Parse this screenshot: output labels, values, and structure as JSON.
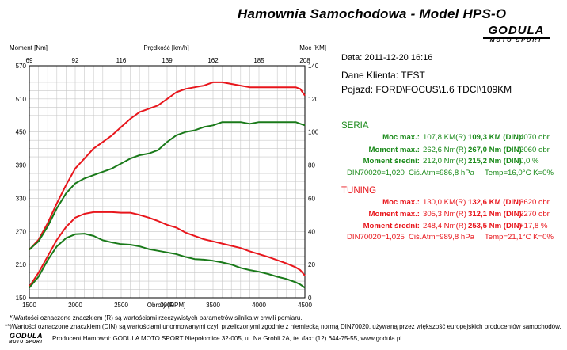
{
  "header": {
    "title": "Hamownia Samochodowa   -   Model HPS-O",
    "logo_main": "GODULA",
    "logo_sub": "MOTO SPORT"
  },
  "info": {
    "date": "Data: 2011-12-20  16:16",
    "klient": "Dane Klienta: TEST",
    "pojazd": "Pojazd: FORD\\FOCUS\\1.6 TDCI\\109KM"
  },
  "seria": {
    "title": "SERIA",
    "rows": [
      {
        "label": "Moc max.:",
        "v1": "107,8 KM(R)",
        "v2": "109,3 KM (DIN)",
        "v3": "4070 obr"
      },
      {
        "label": "Moment max.:",
        "v1": "262,6 Nm(R)",
        "v2": "267,0 Nm (DIN)",
        "v3": "2060 obr"
      },
      {
        "label": "Moment średni:",
        "v1": "212,0 Nm(R)",
        "v2": "215,2 Nm (DIN)",
        "v3": "0,0 %"
      }
    ],
    "din": "DIN70020=1,020",
    "atm": "Ciś.Atm=986,8 hPa",
    "temp": "Temp=16,0°C  K=0%"
  },
  "tuning": {
    "title": "TUNING",
    "rows": [
      {
        "label": "Moc max.:",
        "v1": "130,0 KM(R)",
        "v2": "132,6 KM (DIN)",
        "v3": "3620 obr"
      },
      {
        "label": "Moment max.:",
        "v1": "305,3 Nm(R)",
        "v2": "312,1 Nm (DIN)",
        "v3": "2270 obr"
      },
      {
        "label": "Moment średni:",
        "v1": "248,4 Nm(R)",
        "v2": "253,5 Nm (DIN)",
        "v3": "+17,8 %"
      }
    ],
    "din": "DIN70020=1,025",
    "atm": "Ciś.Atm=989,8 hPa",
    "temp": "Temp=21,1°C  K=0%"
  },
  "footer": {
    "note1": "*)Wartości oznaczone znaczkiem (R) są wartościami rzeczywistych parametrów silnika w chwili pomiaru.",
    "note2": "**)Wartości oznaczone znaczkiem (DIN) są wartościami unormowanymi czyli przeliczonymi zgodnie z niemiecką normą DIN70020, używaną przez większość europejskich producentów samochodów.",
    "producer": "Producent Hamowni: GODULA MOTO SPORT Niepołomice 32-005, ul. Na Grobli 2A, tel./fax: (12) 644-75-55, www.godula.pl",
    "logo_main": "GODULA",
    "logo_sub": "MOTO SPORT"
  },
  "colors": {
    "seria": "#1a7a1a",
    "tuning": "#e8161c",
    "grid": "#c8c8c8"
  },
  "chart_data": {
    "type": "line",
    "title": "",
    "xlabel": "Obroty [RPM]",
    "ylabel_left": "Moment [Nm]",
    "ylabel_right": "Moc [KM]",
    "xlabel_top": "Prędkość [km/h]",
    "xlim": [
      1500,
      4500
    ],
    "ylim_left": [
      150,
      570
    ],
    "ylim_right": [
      0,
      140
    ],
    "x_ticks": [
      1500,
      2000,
      2500,
      3000,
      3500,
      4000,
      4500
    ],
    "y_left_ticks": [
      150,
      210,
      270,
      330,
      390,
      450,
      510,
      570
    ],
    "y_right_ticks": [
      0,
      20,
      40,
      60,
      80,
      100,
      120,
      140
    ],
    "top_ticks": [
      "69",
      "92",
      "116",
      "139",
      "162",
      "185",
      "208"
    ],
    "grid": true,
    "legend": "none",
    "series": [
      {
        "name": "",
        "color": "#e8161c",
        "axis": "right",
        "x": [
          1500,
          1600,
          1700,
          1800,
          1900,
          2000,
          2100,
          2200,
          2300,
          2400,
          2500,
          2600,
          2700,
          2800,
          2900,
          3000,
          3100,
          3200,
          3300,
          3400,
          3500,
          3600,
          3700,
          3800,
          3900,
          4000,
          4100,
          4200,
          4300,
          4400,
          4450,
          4500
        ],
        "y": [
          29,
          35,
          45,
          57,
          68,
          78,
          84,
          90,
          94,
          98,
          103,
          108,
          112,
          114,
          116,
          120,
          124,
          126,
          127,
          128,
          130,
          130,
          129,
          128,
          127,
          127,
          127,
          127,
          127,
          127,
          126,
          122
        ]
      },
      {
        "name": "",
        "color": "#1a7a1a",
        "axis": "right",
        "x": [
          1500,
          1600,
          1700,
          1800,
          1900,
          2000,
          2100,
          2200,
          2300,
          2400,
          2500,
          2600,
          2700,
          2800,
          2900,
          3000,
          3100,
          3200,
          3300,
          3400,
          3500,
          3600,
          3700,
          3800,
          3900,
          4000,
          4100,
          4200,
          4300,
          4400,
          4450,
          4500
        ],
        "y": [
          29,
          34,
          43,
          54,
          63,
          69,
          72,
          74,
          76,
          78,
          81,
          84,
          86,
          87,
          89,
          94,
          98,
          100,
          101,
          103,
          104,
          106,
          106,
          106,
          105,
          106,
          106,
          106,
          106,
          106,
          105,
          104
        ]
      },
      {
        "name": "",
        "color": "#e8161c",
        "axis": "left",
        "x": [
          1500,
          1600,
          1700,
          1800,
          1900,
          2000,
          2100,
          2200,
          2300,
          2400,
          2500,
          2600,
          2700,
          2800,
          2900,
          3000,
          3100,
          3200,
          3300,
          3400,
          3500,
          3600,
          3700,
          3800,
          3900,
          4000,
          4100,
          4200,
          4300,
          4400,
          4450,
          4500
        ],
        "y": [
          170,
          195,
          225,
          255,
          278,
          295,
          302,
          305,
          305,
          305,
          304,
          304,
          300,
          295,
          289,
          282,
          277,
          268,
          262,
          256,
          252,
          248,
          244,
          240,
          234,
          229,
          224,
          218,
          212,
          205,
          200,
          190
        ]
      },
      {
        "name": "",
        "color": "#1a7a1a",
        "axis": "left",
        "x": [
          1500,
          1600,
          1700,
          1800,
          1900,
          2000,
          2100,
          2200,
          2300,
          2400,
          2500,
          2600,
          2700,
          2800,
          2900,
          3000,
          3100,
          3200,
          3300,
          3400,
          3500,
          3600,
          3700,
          3800,
          3900,
          4000,
          4100,
          4200,
          4300,
          4400,
          4450,
          4500
        ],
        "y": [
          168,
          188,
          218,
          243,
          258,
          265,
          266,
          262,
          254,
          250,
          247,
          246,
          243,
          238,
          235,
          232,
          229,
          224,
          220,
          219,
          217,
          214,
          210,
          204,
          200,
          197,
          193,
          188,
          184,
          178,
          174,
          168
        ]
      }
    ]
  }
}
